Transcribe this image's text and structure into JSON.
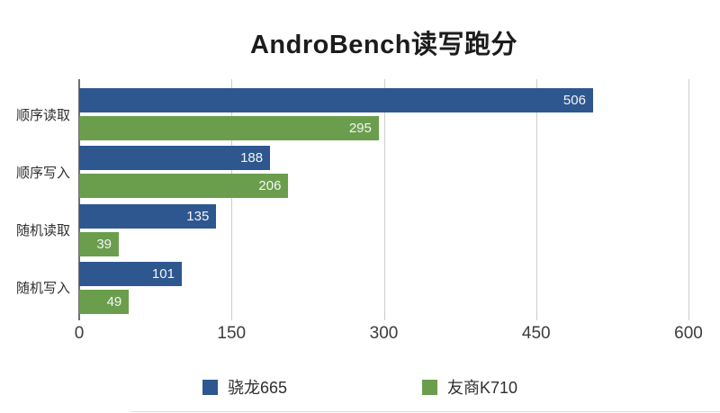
{
  "title": "AndroBench读写跑分",
  "colors": {
    "series1": "#2E578F",
    "series2": "#6A9E4D",
    "gridline": "#cccccc",
    "axis_line": "#707070"
  },
  "chart_data": {
    "type": "bar",
    "orientation": "horizontal",
    "title": "AndroBench读写跑分",
    "categories": [
      "顺序读取",
      "顺序写入",
      "随机读取",
      "随机写入"
    ],
    "series": [
      {
        "name": "骁龙665",
        "color": "#2E578F",
        "values": [
          506,
          188,
          135,
          101
        ]
      },
      {
        "name": "友商K710",
        "color": "#6A9E4D",
        "values": [
          295,
          206,
          39,
          49
        ]
      }
    ],
    "xlabel": "",
    "ylabel": "",
    "xlim": [
      0,
      600
    ],
    "x_ticks": [
      0,
      150,
      300,
      450,
      600
    ],
    "x_tick_labels": [
      "0",
      "150",
      "300",
      "450",
      "600"
    ],
    "grid": "vertical-only",
    "legend_position": "bottom",
    "value_labels": "inside-end, white"
  },
  "legend": {
    "items": [
      {
        "label": "骁龙665",
        "color": "#2E578F"
      },
      {
        "label": "友商K710",
        "color": "#6A9E4D"
      }
    ]
  }
}
